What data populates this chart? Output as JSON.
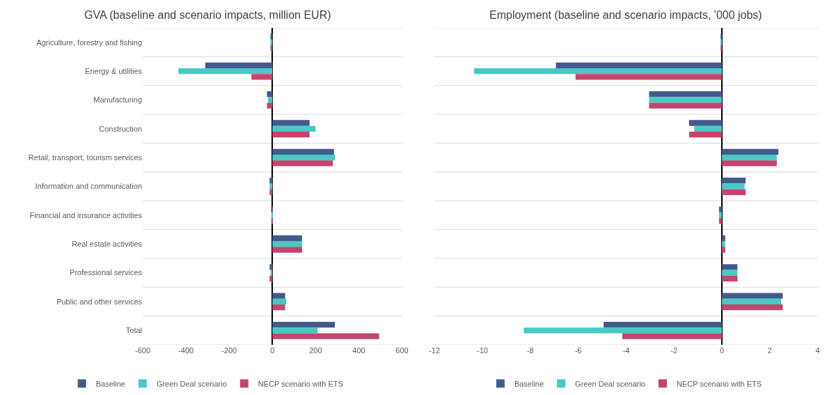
{
  "chart_data": [
    {
      "type": "bar",
      "orientation": "horizontal",
      "title": "GVA (baseline and scenario impacts, million EUR)",
      "categories": [
        "Agriculture, forestry and fishing",
        "Energy & utilities",
        "Manufacturing",
        "Construction",
        "Retail, transport, tourism services",
        "Information and communication",
        "Financial and insurance activities",
        "Real estate activities",
        "Professional services",
        "Public and other services",
        "Total"
      ],
      "series": [
        {
          "name": "Baseline",
          "color": "#455a8c",
          "values": [
            -9,
            -311,
            -25,
            172,
            285,
            -13,
            -6,
            137,
            -13,
            59,
            289
          ]
        },
        {
          "name": "Green Deal scenario",
          "color": "#48c9c5",
          "values": [
            -9,
            -435,
            -20,
            200,
            290,
            -13,
            -3,
            137,
            -9,
            64,
            209
          ]
        },
        {
          "name": "NECP scenario with ETS",
          "color": "#c4456b",
          "values": [
            -9,
            -97,
            -25,
            172,
            280,
            -13,
            -5,
            137,
            -13,
            59,
            494
          ]
        }
      ],
      "xlim": [
        -600,
        600
      ],
      "xticks": [
        -600,
        -400,
        -200,
        0,
        200,
        400,
        600
      ],
      "grid": "y",
      "legend": "bottom"
    },
    {
      "type": "bar",
      "orientation": "horizontal",
      "title": "Employment (baseline and scenario impacts, '000 jobs)",
      "categories": [
        null,
        null,
        null,
        null,
        null,
        null,
        null,
        null,
        null,
        null,
        null
      ],
      "series": [
        {
          "name": "Baseline",
          "color": "#455a8c",
          "values": [
            -0.05,
            -6.93,
            -3.04,
            -1.37,
            2.36,
            0.99,
            -0.12,
            0.14,
            0.65,
            2.54,
            -4.94
          ]
        },
        {
          "name": "Green Deal scenario",
          "color": "#48c9c5",
          "values": [
            -0.05,
            -10.34,
            -3.04,
            -1.15,
            2.29,
            0.95,
            -0.12,
            0.14,
            0.65,
            2.47,
            -8.27
          ]
        },
        {
          "name": "NECP scenario with ETS",
          "color": "#c4456b",
          "values": [
            -0.05,
            -6.11,
            -3.04,
            -1.37,
            2.29,
            0.99,
            -0.12,
            0.14,
            0.65,
            2.54,
            -4.16
          ]
        }
      ],
      "xlim": [
        -12,
        4
      ],
      "xticks": [
        -12,
        -10,
        -8,
        -6,
        -4,
        -2,
        0,
        2,
        4
      ],
      "grid": "y",
      "legend": "bottom"
    }
  ]
}
